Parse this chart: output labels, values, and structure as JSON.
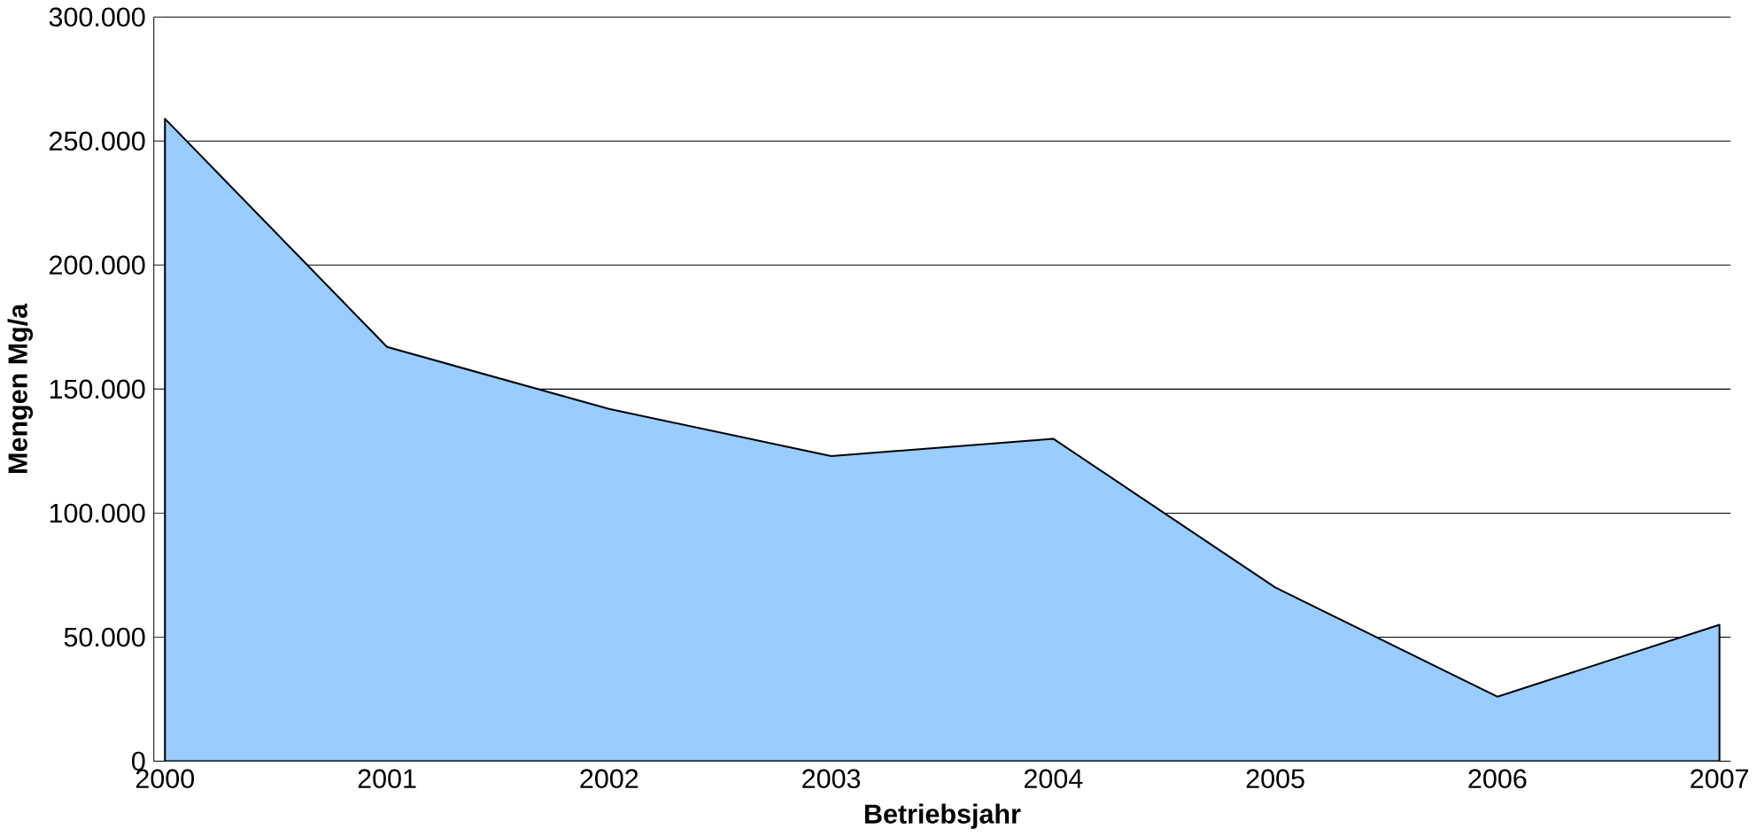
{
  "chart_data": {
    "type": "area",
    "xlabel": "Betriebsjahr",
    "ylabel": "Mengen Mg/a",
    "categories": [
      "2000",
      "2001",
      "2002",
      "2003",
      "2004",
      "2005",
      "2006",
      "2007"
    ],
    "values": [
      259000,
      167000,
      142000,
      123000,
      130000,
      70000,
      26000,
      55000
    ],
    "color": "#99ccff",
    "ylim": [
      0,
      300000
    ],
    "yticks": [
      0,
      {
        "value": 50000,
        "label": "50.000"
      },
      {
        "value": 100000,
        "label": "100.000"
      },
      {
        "value": 150000,
        "label": "150.000"
      },
      {
        "value": 200000,
        "label": "200.000"
      },
      {
        "value": 250000,
        "label": "250.000"
      },
      {
        "value": 300000,
        "label": "300.000"
      }
    ],
    "grid": "y"
  }
}
